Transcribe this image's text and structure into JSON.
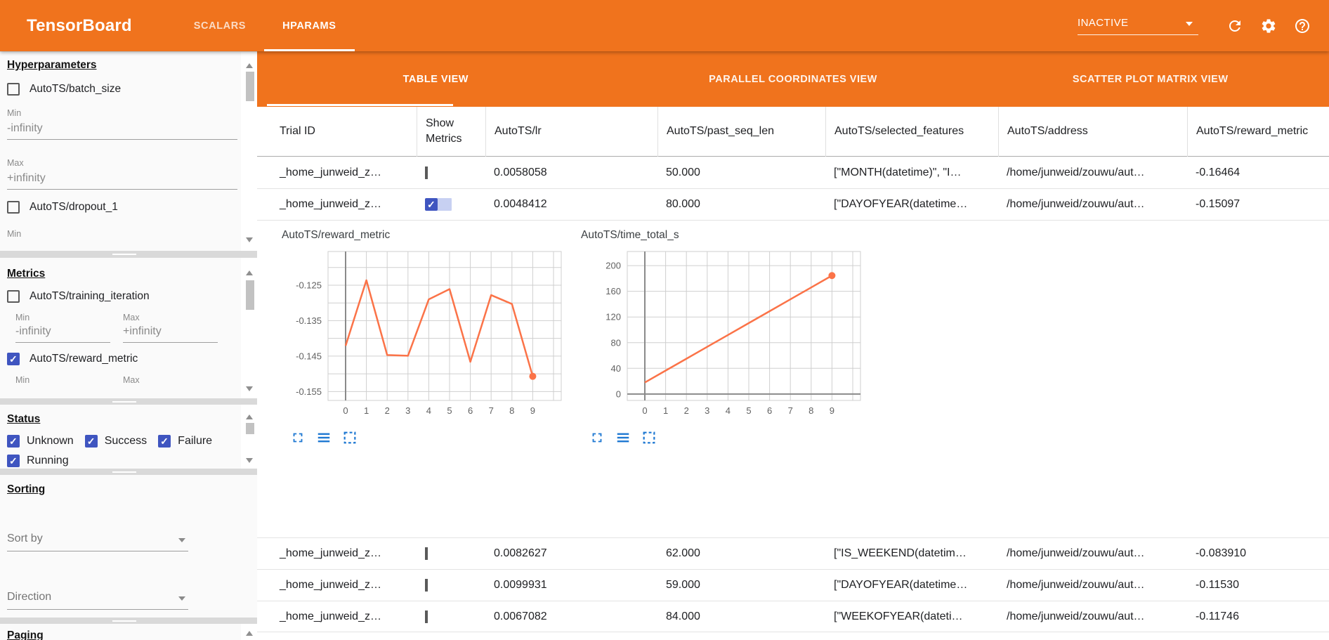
{
  "header": {
    "title": "TensorBoard",
    "tabs": [
      {
        "label": "SCALARS"
      },
      {
        "label": "HPARAMS"
      }
    ],
    "run_status": {
      "value": "INACTIVE"
    }
  },
  "sidebar": {
    "hyperparameters": {
      "heading": "Hyperparameters",
      "param1": {
        "label": "AutoTS/batch_size",
        "checked": false
      },
      "min_label": "Min",
      "min_placeholder": "-infinity",
      "max_label": "Max",
      "max_placeholder": "+infinity",
      "param2": {
        "label": "AutoTS/dropout_1",
        "checked": false
      },
      "trailing_min_label": "Min"
    },
    "metrics": {
      "heading": "Metrics",
      "metric1": {
        "label": "AutoTS/training_iteration",
        "checked": false
      },
      "min_label": "Min",
      "min_placeholder": "-infinity",
      "max_label": "Max",
      "max_placeholder": "+infinity",
      "metric2": {
        "label": "AutoTS/reward_metric",
        "checked": true
      },
      "trailing_min_label": "Min",
      "trailing_max_label": "Max"
    },
    "status": {
      "heading": "Status",
      "options": [
        {
          "label": "Unknown",
          "checked": true
        },
        {
          "label": "Success",
          "checked": true
        },
        {
          "label": "Failure",
          "checked": true
        },
        {
          "label": "Running",
          "checked": true
        }
      ]
    },
    "sorting": {
      "heading": "Sorting",
      "sort_by_placeholder": "Sort by",
      "direction_placeholder": "Direction"
    },
    "paging": {
      "heading": "Paging"
    }
  },
  "main": {
    "view_tabs": [
      {
        "label": "TABLE VIEW",
        "active": true
      },
      {
        "label": "PARALLEL COORDINATES VIEW",
        "active": false
      },
      {
        "label": "SCATTER PLOT MATRIX VIEW",
        "active": false
      }
    ],
    "table": {
      "columns": [
        "Trial ID",
        "Show Metrics",
        "AutoTS/lr",
        "AutoTS/past_seq_len",
        "AutoTS/selected_features",
        "AutoTS/address",
        "AutoTS/reward_metric"
      ],
      "rows": [
        {
          "trial_id": "_home_junweid_z…",
          "show_metrics": false,
          "lr": "0.0058058",
          "past_seq_len": "50.000",
          "selected_features": "[\"MONTH(datetime)\", \"I…",
          "address": "/home/junweid/zouwu/aut…",
          "reward_metric": "-0.16464"
        },
        {
          "trial_id": "_home_junweid_z…",
          "show_metrics": true,
          "lr": "0.0048412",
          "past_seq_len": "80.000",
          "selected_features": "[\"DAYOFYEAR(datetime…",
          "address": "/home/junweid/zouwu/aut…",
          "reward_metric": "-0.15097"
        },
        {
          "trial_id": "_home_junweid_z…",
          "show_metrics": false,
          "lr": "0.0082627",
          "past_seq_len": "62.000",
          "selected_features": "[\"IS_WEEKEND(datetim…",
          "address": "/home/junweid/zouwu/aut…",
          "reward_metric": "-0.083910"
        },
        {
          "trial_id": "_home_junweid_z…",
          "show_metrics": false,
          "lr": "0.0099931",
          "past_seq_len": "59.000",
          "selected_features": "[\"DAYOFYEAR(datetime…",
          "address": "/home/junweid/zouwu/aut…",
          "reward_metric": "-0.11530"
        },
        {
          "trial_id": "_home_junweid_z…",
          "show_metrics": false,
          "lr": "0.0067082",
          "past_seq_len": "84.000",
          "selected_features": "[\"WEEKOFYEAR(dateti…",
          "address": "/home/junweid/zouwu/aut…",
          "reward_metric": "-0.11746"
        }
      ]
    }
  },
  "chart_data": [
    {
      "type": "line",
      "title": "AutoTS/reward_metric",
      "x": [
        0,
        1,
        2,
        3,
        4,
        5,
        6,
        7,
        8,
        9
      ],
      "values": [
        -0.1421,
        -0.1236,
        -0.1447,
        -0.1449,
        -0.129,
        -0.1261,
        -0.1466,
        -0.1278,
        -0.1303,
        -0.1507
      ],
      "ylim": [
        -0.1575,
        -0.1155
      ],
      "yticks": [
        -0.125,
        -0.135,
        -0.145,
        -0.155
      ],
      "ytick_labels": [
        "-0.125",
        "-0.135",
        "-0.145",
        "-0.155"
      ],
      "grid_step": 0.005,
      "xticks": [
        0,
        1,
        2,
        3,
        4,
        5,
        6,
        7,
        8,
        9
      ],
      "line_color": "#fb7348",
      "end_marker": true,
      "zero_axis": false,
      "grid": true,
      "legend": "none"
    },
    {
      "type": "line",
      "title": "AutoTS/time_total_s",
      "x": [
        0,
        1,
        2,
        3,
        4,
        5,
        6,
        7,
        8,
        9
      ],
      "values": [
        18,
        36.5,
        55,
        73.5,
        92,
        110.5,
        129,
        147.5,
        166,
        184.5
      ],
      "ylim": [
        -10,
        222
      ],
      "yticks": [
        200,
        160,
        120,
        80,
        40,
        0
      ],
      "ytick_labels": [
        "200",
        "160",
        "120",
        "80",
        "40",
        "0"
      ],
      "grid_step": 40,
      "xticks": [
        0,
        1,
        2,
        3,
        4,
        5,
        6,
        7,
        8,
        9
      ],
      "line_color": "#fb7348",
      "end_marker": true,
      "zero_axis": true,
      "grid": true,
      "legend": "none"
    }
  ]
}
